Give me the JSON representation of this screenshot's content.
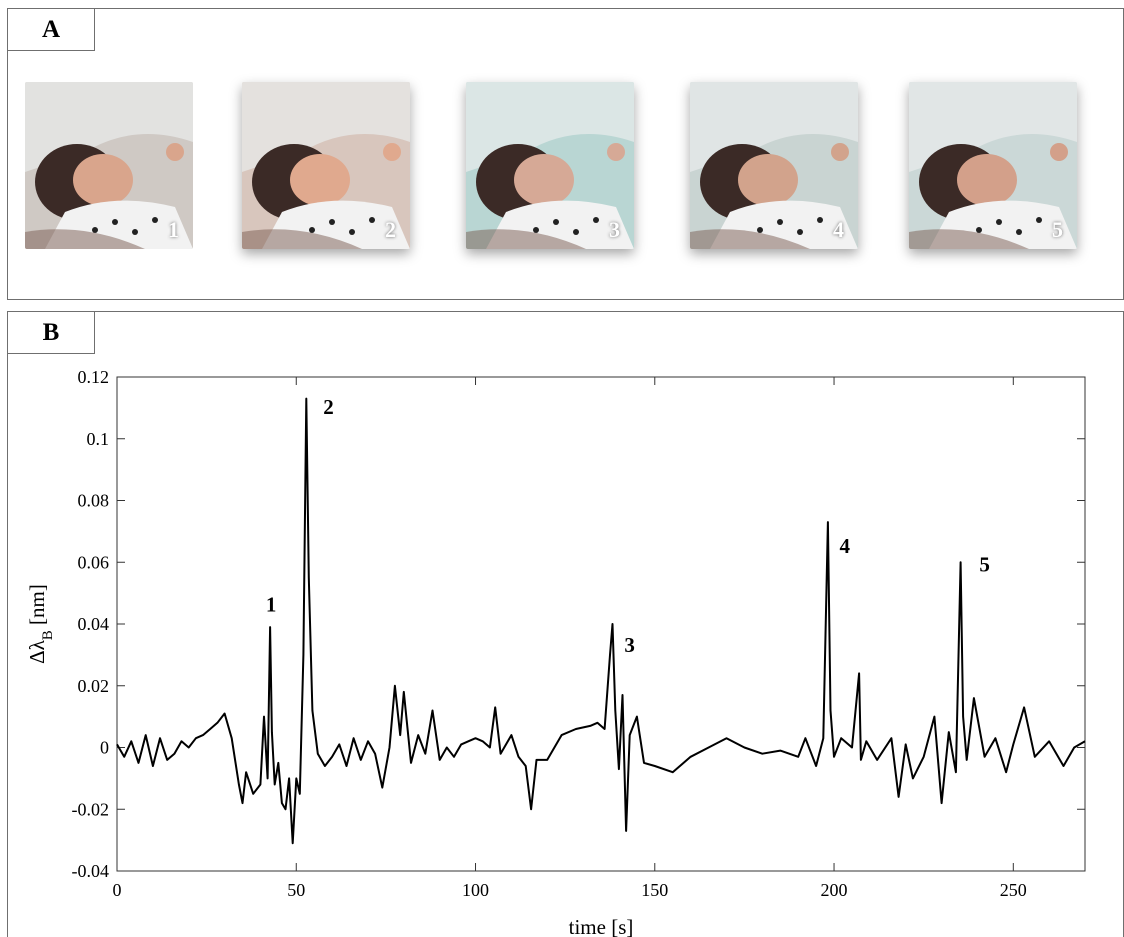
{
  "panel_a": {
    "label": "A",
    "photos": [
      {
        "number": "1",
        "bg": "#cfc9c4",
        "skin": "#d9a58c"
      },
      {
        "number": "2",
        "bg": "#d8c6bd",
        "skin": "#e0a98e"
      },
      {
        "number": "3",
        "bg": "#b9d6d3",
        "skin": "#d6a996"
      },
      {
        "number": "4",
        "bg": "#c9d4d2",
        "skin": "#d2a38c"
      },
      {
        "number": "5",
        "bg": "#cbd8d7",
        "skin": "#d3a08a"
      }
    ]
  },
  "panel_b": {
    "label": "B"
  },
  "chart_data": {
    "type": "line",
    "xlabel": "time [s]",
    "ylabel_main": "Δλ",
    "ylabel_sub": "B",
    "ylabel_unit": " [nm]",
    "xlim": [
      0,
      270
    ],
    "ylim": [
      -0.04,
      0.12
    ],
    "xticks": [
      0,
      50,
      100,
      150,
      200,
      250
    ],
    "yticks": [
      -0.04,
      -0.02,
      0,
      0.02,
      0.04,
      0.06,
      0.08,
      0.1,
      0.12
    ],
    "ytick_labels": [
      "-0.04",
      "-0.02",
      "0",
      "0.02",
      "0.04",
      "0.06",
      "0.08",
      "0.1",
      "0.12"
    ],
    "grid": false,
    "line_color": "#000000",
    "series": [
      {
        "x": [
          0,
          2,
          4,
          6,
          8,
          10,
          12,
          14,
          16,
          18,
          20,
          22,
          24,
          26,
          28,
          30,
          32,
          34,
          35,
          36,
          38,
          40,
          41,
          42,
          42.7,
          43.2,
          44,
          45,
          46,
          47,
          48,
          49,
          50,
          51,
          52,
          52.8,
          53.5,
          54.5,
          56,
          58,
          60,
          62,
          64,
          66,
          68,
          70,
          72,
          74,
          76,
          77.5,
          79,
          80,
          82,
          84,
          86,
          88,
          90,
          92,
          94,
          96,
          98,
          100,
          102,
          104,
          105.5,
          107,
          110,
          112,
          114,
          115.5,
          117,
          120,
          124,
          128,
          132,
          134,
          136,
          137.5,
          138.2,
          139,
          140,
          141,
          142,
          143,
          145,
          147,
          150,
          155,
          160,
          165,
          170,
          175,
          180,
          185,
          190,
          192,
          195,
          197,
          198.3,
          199,
          200,
          202,
          205,
          207,
          207.5,
          209,
          212,
          216,
          218,
          220,
          222,
          225,
          228,
          230,
          232,
          234,
          235.3,
          236,
          237,
          239,
          242,
          245,
          248,
          250,
          253,
          256,
          260,
          264,
          267,
          270
        ],
        "y": [
          0.001,
          -0.003,
          0.002,
          -0.005,
          0.004,
          -0.006,
          0.003,
          -0.004,
          -0.002,
          0.002,
          0.0,
          0.003,
          0.004,
          0.006,
          0.008,
          0.011,
          0.003,
          -0.012,
          -0.018,
          -0.008,
          -0.015,
          -0.012,
          0.01,
          -0.01,
          0.039,
          0.005,
          -0.012,
          -0.005,
          -0.018,
          -0.02,
          -0.01,
          -0.031,
          -0.01,
          -0.015,
          0.03,
          0.113,
          0.055,
          0.012,
          -0.002,
          -0.006,
          -0.003,
          0.001,
          -0.006,
          0.003,
          -0.004,
          0.002,
          -0.002,
          -0.013,
          0.0,
          0.02,
          0.004,
          0.018,
          -0.005,
          0.004,
          -0.002,
          0.012,
          -0.004,
          0.0,
          -0.003,
          0.001,
          0.002,
          0.003,
          0.002,
          0.0,
          0.013,
          -0.002,
          0.004,
          -0.003,
          -0.006,
          -0.02,
          -0.004,
          -0.004,
          0.004,
          0.006,
          0.007,
          0.008,
          0.006,
          0.03,
          0.04,
          0.012,
          -0.007,
          0.017,
          -0.027,
          0.004,
          0.01,
          -0.005,
          -0.006,
          -0.008,
          -0.003,
          0.0,
          0.003,
          0.0,
          -0.002,
          -0.001,
          -0.003,
          0.003,
          -0.006,
          0.003,
          0.073,
          0.012,
          -0.003,
          0.003,
          0.0,
          0.024,
          -0.004,
          0.002,
          -0.004,
          0.003,
          -0.016,
          0.001,
          -0.01,
          -0.003,
          0.01,
          -0.018,
          0.005,
          -0.008,
          0.06,
          0.01,
          -0.004,
          0.016,
          -0.003,
          0.003,
          -0.008,
          0.001,
          0.013,
          -0.003,
          0.002,
          -0.006,
          0.0,
          0.002
        ]
      }
    ],
    "annotations": [
      {
        "text": "1",
        "x": 43,
        "y": 0.044
      },
      {
        "text": "2",
        "x": 59,
        "y": 0.108
      },
      {
        "text": "3",
        "x": 143,
        "y": 0.031
      },
      {
        "text": "4",
        "x": 203,
        "y": 0.063
      },
      {
        "text": "5",
        "x": 242,
        "y": 0.057
      }
    ]
  }
}
